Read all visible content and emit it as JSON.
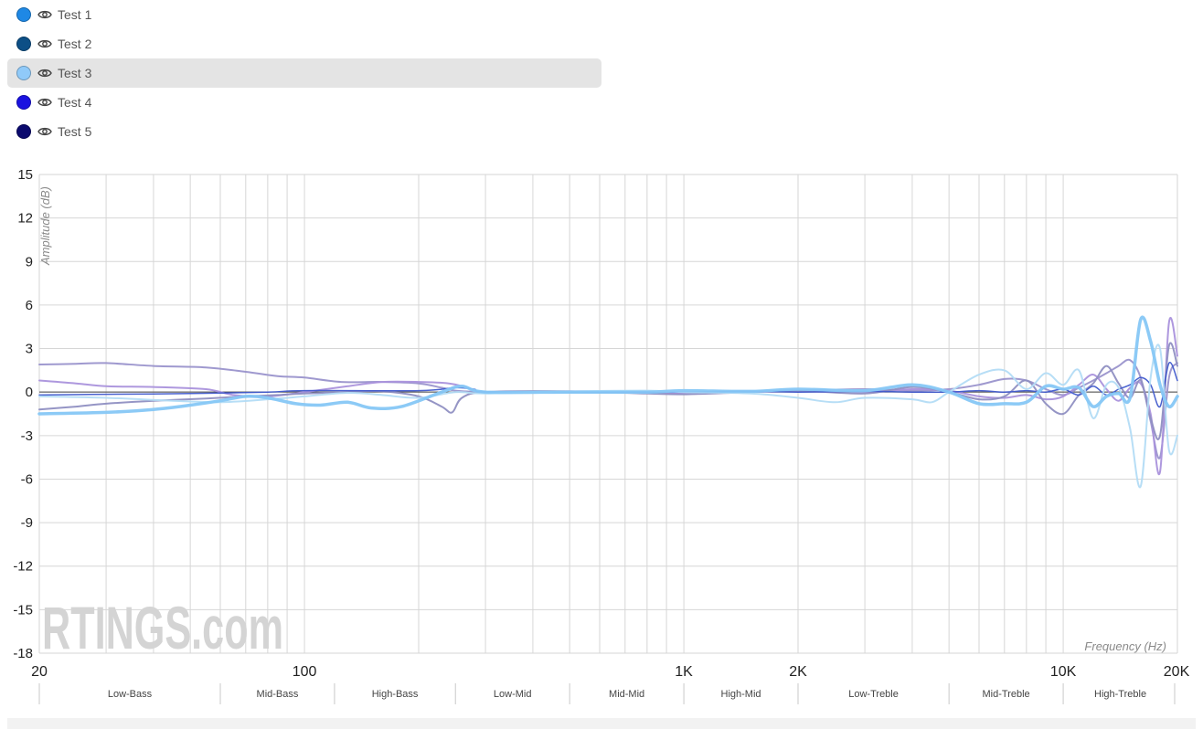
{
  "legend": {
    "items": [
      {
        "label": "Test 1",
        "color": "#1e88e5"
      },
      {
        "label": "Test 2",
        "color": "#0d4f86"
      },
      {
        "label": "Test 3",
        "color": "#90caf9"
      },
      {
        "label": "Test 4",
        "color": "#1a12e0"
      },
      {
        "label": "Test 5",
        "color": "#0b0a6e"
      }
    ],
    "selected_index": 2,
    "icon": "eye-icon"
  },
  "watermark": "RTINGS.com",
  "chart_data": {
    "type": "line",
    "xscale": "log",
    "xlim": [
      20,
      20000
    ],
    "ylim": [
      -18,
      15
    ],
    "grid": true,
    "ylabel": "Amplitude (dB)",
    "xlabel": "Frequency (Hz)",
    "y_ticks": [
      15,
      12,
      9,
      6,
      3,
      0,
      -3,
      -6,
      -9,
      -12,
      -15,
      -18
    ],
    "x_ticks": [
      {
        "value": 20,
        "label": "20"
      },
      {
        "value": 100,
        "label": "100"
      },
      {
        "value": 1000,
        "label": "1K"
      },
      {
        "value": 2000,
        "label": "2K"
      },
      {
        "value": 10000,
        "label": "10K"
      },
      {
        "value": 20000,
        "label": "20K"
      }
    ],
    "x_grid": [
      20,
      30,
      40,
      50,
      60,
      70,
      80,
      90,
      100,
      200,
      300,
      400,
      500,
      600,
      700,
      800,
      900,
      1000,
      2000,
      3000,
      4000,
      5000,
      6000,
      7000,
      8000,
      9000,
      10000,
      20000
    ],
    "bands": [
      {
        "label": "Low-Bass",
        "from": 20,
        "to": 60
      },
      {
        "label": "Mid-Bass",
        "from": 60,
        "to": 120
      },
      {
        "label": "High-Bass",
        "from": 120,
        "to": 250
      },
      {
        "label": "Low-Mid",
        "from": 250,
        "to": 500
      },
      {
        "label": "Mid-Mid",
        "from": 500,
        "to": 1000
      },
      {
        "label": "High-Mid",
        "from": 1000,
        "to": 2000
      },
      {
        "label": "Low-Treble",
        "from": 2000,
        "to": 5000
      },
      {
        "label": "Mid-Treble",
        "from": 5000,
        "to": 10000
      },
      {
        "label": "High-Treble",
        "from": 10000,
        "to": 20000
      }
    ],
    "series": [
      {
        "color": "#9a94cc",
        "width": 2,
        "points": [
          [
            20,
            1.9
          ],
          [
            25,
            1.95
          ],
          [
            30,
            2.0
          ],
          [
            40,
            1.8
          ],
          [
            55,
            1.7
          ],
          [
            70,
            1.4
          ],
          [
            85,
            1.1
          ],
          [
            100,
            1.0
          ],
          [
            125,
            0.7
          ],
          [
            160,
            0.7
          ],
          [
            200,
            0.6
          ],
          [
            230,
            0.3
          ],
          [
            250,
            0.1
          ],
          [
            300,
            0
          ],
          [
            500,
            0
          ],
          [
            800,
            -0.05
          ],
          [
            1000,
            0
          ],
          [
            1500,
            0.05
          ],
          [
            2000,
            0.1
          ],
          [
            3000,
            0.2
          ],
          [
            4000,
            0.1
          ],
          [
            5000,
            0.2
          ],
          [
            6000,
            0.5
          ],
          [
            7000,
            0.9
          ],
          [
            8000,
            0.8
          ],
          [
            9000,
            0.2
          ],
          [
            10000,
            -0.2
          ],
          [
            11000,
            0.3
          ],
          [
            12000,
            0.8
          ],
          [
            13000,
            1.3
          ],
          [
            14000,
            1.8
          ],
          [
            15000,
            2.2
          ],
          [
            16000,
            1.0
          ],
          [
            17000,
            -2.0
          ],
          [
            18000,
            -4.5
          ],
          [
            19000,
            1.0
          ],
          [
            20000,
            2.0
          ]
        ]
      },
      {
        "color": "#aa92dc",
        "width": 2,
        "points": [
          [
            20,
            0.8
          ],
          [
            25,
            0.6
          ],
          [
            30,
            0.4
          ],
          [
            40,
            0.35
          ],
          [
            55,
            0.2
          ],
          [
            65,
            -0.2
          ],
          [
            80,
            -0.3
          ],
          [
            100,
            0
          ],
          [
            130,
            0.4
          ],
          [
            160,
            0.7
          ],
          [
            200,
            0.7
          ],
          [
            240,
            0.6
          ],
          [
            270,
            0.3
          ],
          [
            300,
            0
          ],
          [
            500,
            0.05
          ],
          [
            800,
            0
          ],
          [
            1000,
            -0.1
          ],
          [
            1500,
            0
          ],
          [
            2000,
            0.05
          ],
          [
            3000,
            0
          ],
          [
            4000,
            0.2
          ],
          [
            5000,
            0.1
          ],
          [
            6000,
            -0.3
          ],
          [
            7000,
            -0.4
          ],
          [
            8000,
            -0.2
          ],
          [
            9000,
            -0.5
          ],
          [
            10000,
            -0.3
          ],
          [
            11000,
            0.5
          ],
          [
            12000,
            1.2
          ],
          [
            13000,
            0.2
          ],
          [
            14000,
            -0.6
          ],
          [
            15000,
            0.3
          ],
          [
            16000,
            0.6
          ],
          [
            17000,
            -1.5
          ],
          [
            18000,
            -5.5
          ],
          [
            19000,
            4.8
          ],
          [
            20000,
            2.5
          ]
        ]
      },
      {
        "color": "#8f8fc2",
        "width": 2,
        "points": [
          [
            20,
            -1.2
          ],
          [
            25,
            -1.0
          ],
          [
            30,
            -0.8
          ],
          [
            40,
            -0.6
          ],
          [
            55,
            -0.45
          ],
          [
            70,
            -0.3
          ],
          [
            85,
            -0.2
          ],
          [
            100,
            -0.1
          ],
          [
            130,
            0
          ],
          [
            160,
            0.05
          ],
          [
            200,
            -0.3
          ],
          [
            230,
            -1.0
          ],
          [
            245,
            -1.4
          ],
          [
            260,
            -0.4
          ],
          [
            300,
            0
          ],
          [
            500,
            0.05
          ],
          [
            800,
            -0.1
          ],
          [
            1000,
            -0.15
          ],
          [
            1500,
            0
          ],
          [
            2000,
            0.1
          ],
          [
            3000,
            -0.1
          ],
          [
            4000,
            0.35
          ],
          [
            5000,
            0
          ],
          [
            6000,
            -0.5
          ],
          [
            7000,
            -0.3
          ],
          [
            8000,
            0.8
          ],
          [
            9000,
            -0.8
          ],
          [
            10000,
            -1.5
          ],
          [
            11000,
            -0.2
          ],
          [
            12000,
            0.6
          ],
          [
            13000,
            1.8
          ],
          [
            14000,
            0.6
          ],
          [
            15000,
            -0.4
          ],
          [
            16000,
            0.8
          ],
          [
            17000,
            -1.8
          ],
          [
            18000,
            -3.0
          ],
          [
            19000,
            3.2
          ],
          [
            20000,
            1.8
          ]
        ]
      },
      {
        "color": "#3f58cc",
        "width": 1.5,
        "points": [
          [
            20,
            -0.2
          ],
          [
            30,
            -0.15
          ],
          [
            50,
            -0.1
          ],
          [
            80,
            0
          ],
          [
            100,
            0.1
          ],
          [
            200,
            0.1
          ],
          [
            250,
            0.3
          ],
          [
            280,
            0.2
          ],
          [
            300,
            0
          ],
          [
            500,
            0
          ],
          [
            800,
            0
          ],
          [
            1000,
            0
          ],
          [
            1500,
            0.05
          ],
          [
            2000,
            0
          ],
          [
            3000,
            0.05
          ],
          [
            4000,
            0
          ],
          [
            5000,
            0
          ],
          [
            6000,
            0.1
          ],
          [
            7000,
            0
          ],
          [
            8000,
            0.1
          ],
          [
            9000,
            0
          ],
          [
            10000,
            0.2
          ],
          [
            11000,
            -0.2
          ],
          [
            12000,
            0.4
          ],
          [
            13000,
            -0.2
          ],
          [
            14000,
            0.2
          ],
          [
            15000,
            0.5
          ],
          [
            16000,
            1.0
          ],
          [
            17000,
            0.5
          ],
          [
            18000,
            -1.0
          ],
          [
            19000,
            2.0
          ],
          [
            20000,
            0.8
          ]
        ]
      },
      {
        "color": "#b3dcf6",
        "width": 2,
        "points": [
          [
            20,
            -0.3
          ],
          [
            30,
            -0.4
          ],
          [
            45,
            -0.6
          ],
          [
            60,
            -0.7
          ],
          [
            80,
            -0.5
          ],
          [
            100,
            -0.3
          ],
          [
            130,
            -0.05
          ],
          [
            160,
            -0.2
          ],
          [
            200,
            -0.4
          ],
          [
            250,
            0
          ],
          [
            300,
            -0.1
          ],
          [
            500,
            0.05
          ],
          [
            800,
            0.1
          ],
          [
            1000,
            0
          ],
          [
            1500,
            -0.1
          ],
          [
            2000,
            -0.4
          ],
          [
            2500,
            -0.7
          ],
          [
            3000,
            -0.4
          ],
          [
            4000,
            -0.5
          ],
          [
            4500,
            -0.7
          ],
          [
            5000,
            0
          ],
          [
            6000,
            1.2
          ],
          [
            7000,
            1.5
          ],
          [
            8000,
            0.2
          ],
          [
            9000,
            1.3
          ],
          [
            10000,
            0.5
          ],
          [
            11000,
            1.5
          ],
          [
            12000,
            -1.8
          ],
          [
            13000,
            0.5
          ],
          [
            14000,
            0.3
          ],
          [
            15000,
            -2.5
          ],
          [
            16000,
            -6.5
          ],
          [
            17000,
            1.0
          ],
          [
            18000,
            3.0
          ],
          [
            19000,
            -4.0
          ],
          [
            20000,
            -3.0
          ]
        ]
      },
      {
        "color": "#86c7f6",
        "width": 3.5,
        "points": [
          [
            20,
            -1.5
          ],
          [
            30,
            -1.4
          ],
          [
            40,
            -1.2
          ],
          [
            50,
            -0.9
          ],
          [
            60,
            -0.6
          ],
          [
            70,
            -0.3
          ],
          [
            80,
            -0.4
          ],
          [
            95,
            -0.8
          ],
          [
            110,
            -0.9
          ],
          [
            130,
            -0.7
          ],
          [
            150,
            -1.1
          ],
          [
            180,
            -1.0
          ],
          [
            230,
            0
          ],
          [
            260,
            0.4
          ],
          [
            300,
            0
          ],
          [
            500,
            0
          ],
          [
            800,
            0
          ],
          [
            1000,
            0.1
          ],
          [
            1500,
            0.05
          ],
          [
            2000,
            0.2
          ],
          [
            3000,
            0.1
          ],
          [
            4000,
            0.5
          ],
          [
            5000,
            0
          ],
          [
            6000,
            -0.8
          ],
          [
            7000,
            -0.8
          ],
          [
            8000,
            -0.7
          ],
          [
            9000,
            0.4
          ],
          [
            10000,
            0.2
          ],
          [
            11000,
            0.3
          ],
          [
            12000,
            -1.0
          ],
          [
            13000,
            -0.3
          ],
          [
            14000,
            -0.1
          ],
          [
            15000,
            -0.4
          ],
          [
            16000,
            5.0
          ],
          [
            17000,
            3.5
          ],
          [
            18000,
            0.5
          ],
          [
            19000,
            -1.0
          ],
          [
            20000,
            -0.3
          ]
        ]
      }
    ]
  }
}
